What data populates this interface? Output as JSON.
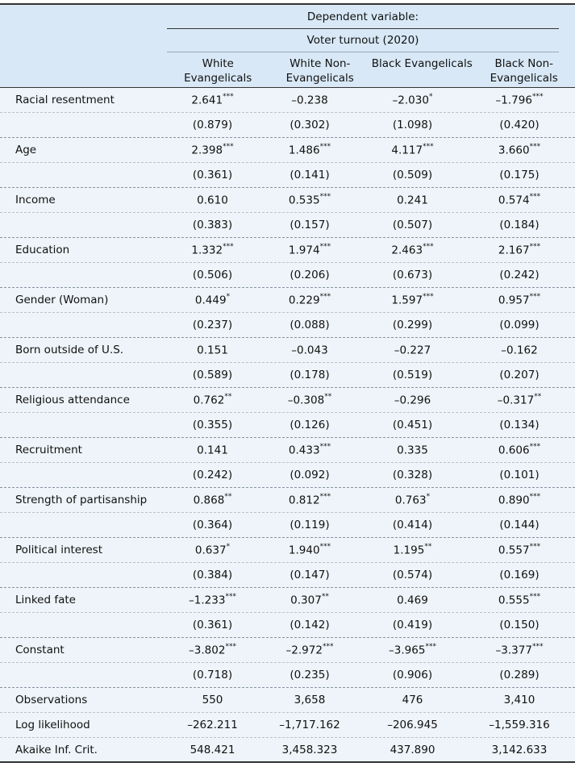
{
  "header": {
    "dependent_variable": "Dependent variable:",
    "outcome": "Voter turnout (2020)",
    "columns": [
      "White Evangelicals",
      "White Non-Evangelicals",
      "Black Evangelicals",
      "Black Non-Evangelicals"
    ]
  },
  "rows": [
    {
      "label": "Racial resentment",
      "coef": [
        "2.641",
        "–0.238",
        "–2.030",
        "–1.796"
      ],
      "stars": [
        "***",
        "",
        "*",
        "***"
      ],
      "se": [
        "(0.879)",
        "(0.302)",
        "(1.098)",
        "(0.420)"
      ]
    },
    {
      "label": "Age",
      "coef": [
        "2.398",
        "1.486",
        "4.117",
        "3.660"
      ],
      "stars": [
        "***",
        "***",
        "***",
        "***"
      ],
      "se": [
        "(0.361)",
        "(0.141)",
        "(0.509)",
        "(0.175)"
      ]
    },
    {
      "label": "Income",
      "coef": [
        "0.610",
        "0.535",
        "0.241",
        "0.574"
      ],
      "stars": [
        "",
        "***",
        "",
        "***"
      ],
      "se": [
        "(0.383)",
        "(0.157)",
        "(0.507)",
        "(0.184)"
      ]
    },
    {
      "label": "Education",
      "coef": [
        "1.332",
        "1.974",
        "2.463",
        "2.167"
      ],
      "stars": [
        "***",
        "***",
        "***",
        "***"
      ],
      "se": [
        "(0.506)",
        "(0.206)",
        "(0.673)",
        "(0.242)"
      ]
    },
    {
      "label": "Gender (Woman)",
      "coef": [
        "0.449",
        "0.229",
        "1.597",
        "0.957"
      ],
      "stars": [
        "*",
        "***",
        "***",
        "***"
      ],
      "se": [
        "(0.237)",
        "(0.088)",
        "(0.299)",
        "(0.099)"
      ]
    },
    {
      "label": "Born outside of U.S.",
      "coef": [
        "0.151",
        "–0.043",
        "–0.227",
        "–0.162"
      ],
      "stars": [
        "",
        "",
        "",
        ""
      ],
      "se": [
        "(0.589)",
        "(0.178)",
        "(0.519)",
        "(0.207)"
      ]
    },
    {
      "label": "Religious attendance",
      "coef": [
        "0.762",
        "–0.308",
        "–0.296",
        "–0.317"
      ],
      "stars": [
        "**",
        "**",
        "",
        "**"
      ],
      "se": [
        "(0.355)",
        "(0.126)",
        "(0.451)",
        "(0.134)"
      ]
    },
    {
      "label": "Recruitment",
      "coef": [
        "0.141",
        "0.433",
        "0.335",
        "0.606"
      ],
      "stars": [
        "",
        "***",
        "",
        "***"
      ],
      "se": [
        "(0.242)",
        "(0.092)",
        "(0.328)",
        "(0.101)"
      ]
    },
    {
      "label": "Strength of partisanship",
      "coef": [
        "0.868",
        "0.812",
        "0.763",
        "0.890"
      ],
      "stars": [
        "**",
        "***",
        "*",
        "***"
      ],
      "se": [
        "(0.364)",
        "(0.119)",
        "(0.414)",
        "(0.144)"
      ]
    },
    {
      "label": "Political interest",
      "coef": [
        "0.637",
        "1.940",
        "1.195",
        "0.557"
      ],
      "stars": [
        "*",
        "***",
        "**",
        "***"
      ],
      "se": [
        "(0.384)",
        "(0.147)",
        "(0.574)",
        "(0.169)"
      ]
    },
    {
      "label": "Linked fate",
      "coef": [
        "–1.233",
        "0.307",
        "0.469",
        "0.555"
      ],
      "stars": [
        "***",
        "**",
        "",
        "***"
      ],
      "se": [
        "(0.361)",
        "(0.142)",
        "(0.419)",
        "(0.150)"
      ]
    },
    {
      "label": "Constant",
      "coef": [
        "–3.802",
        "–2.972",
        "–3.965",
        "–3.377"
      ],
      "stars": [
        "***",
        "***",
        "***",
        "***"
      ],
      "se": [
        "(0.718)",
        "(0.235)",
        "(0.906)",
        "(0.289)"
      ]
    }
  ],
  "stats": [
    {
      "label": "Observations",
      "values": [
        "550",
        "3,658",
        "476",
        "3,410"
      ]
    },
    {
      "label": "Log likelihood",
      "values": [
        "–262.211",
        "–1,717.162",
        "–206.945",
        "–1,559.316"
      ]
    },
    {
      "label": "Akaike Inf. Crit.",
      "values": [
        "548.421",
        "3,458.323",
        "437.890",
        "3,142.633"
      ]
    }
  ]
}
